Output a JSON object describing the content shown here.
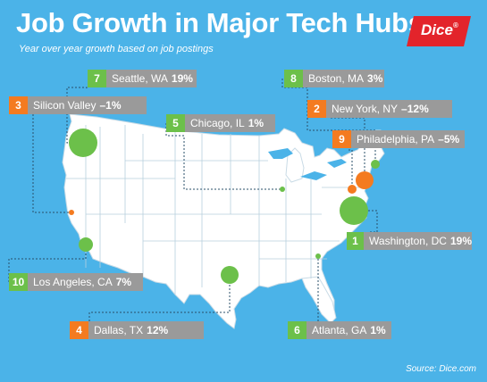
{
  "title": "Job Growth in Major Tech Hubs",
  "subtitle": "Year over year growth based on job postings",
  "logo": {
    "text": "Dice",
    "mark": "®",
    "color": "#e3242b"
  },
  "colors": {
    "growth": "#6cc04a",
    "decline": "#f47b20",
    "label_box": "#9a9a9a",
    "background": "#4bb3e8",
    "land": "#ffffff"
  },
  "cities": [
    {
      "rank": "7",
      "name": "Seattle, WA",
      "change": "19%",
      "direction": "growth"
    },
    {
      "rank": "8",
      "name": "Boston, MA",
      "change": "3%",
      "direction": "growth"
    },
    {
      "rank": "3",
      "name": "Silicon Valley",
      "change": "–1%",
      "direction": "decline"
    },
    {
      "rank": "2",
      "name": "New York, NY",
      "change": "–12%",
      "direction": "decline"
    },
    {
      "rank": "5",
      "name": "Chicago, IL",
      "change": "1%",
      "direction": "growth"
    },
    {
      "rank": "9",
      "name": "Philadelphia, PA",
      "change": "–5%",
      "direction": "decline"
    },
    {
      "rank": "1",
      "name": "Washington, DC",
      "change": "19%",
      "direction": "growth"
    },
    {
      "rank": "10",
      "name": "Los Angeles, CA",
      "change": "7%",
      "direction": "growth"
    },
    {
      "rank": "4",
      "name": "Dallas, TX",
      "change": "12%",
      "direction": "growth"
    },
    {
      "rank": "6",
      "name": "Atlanta, GA",
      "change": "1%",
      "direction": "growth"
    }
  ],
  "source": "Source: Dice.com"
}
